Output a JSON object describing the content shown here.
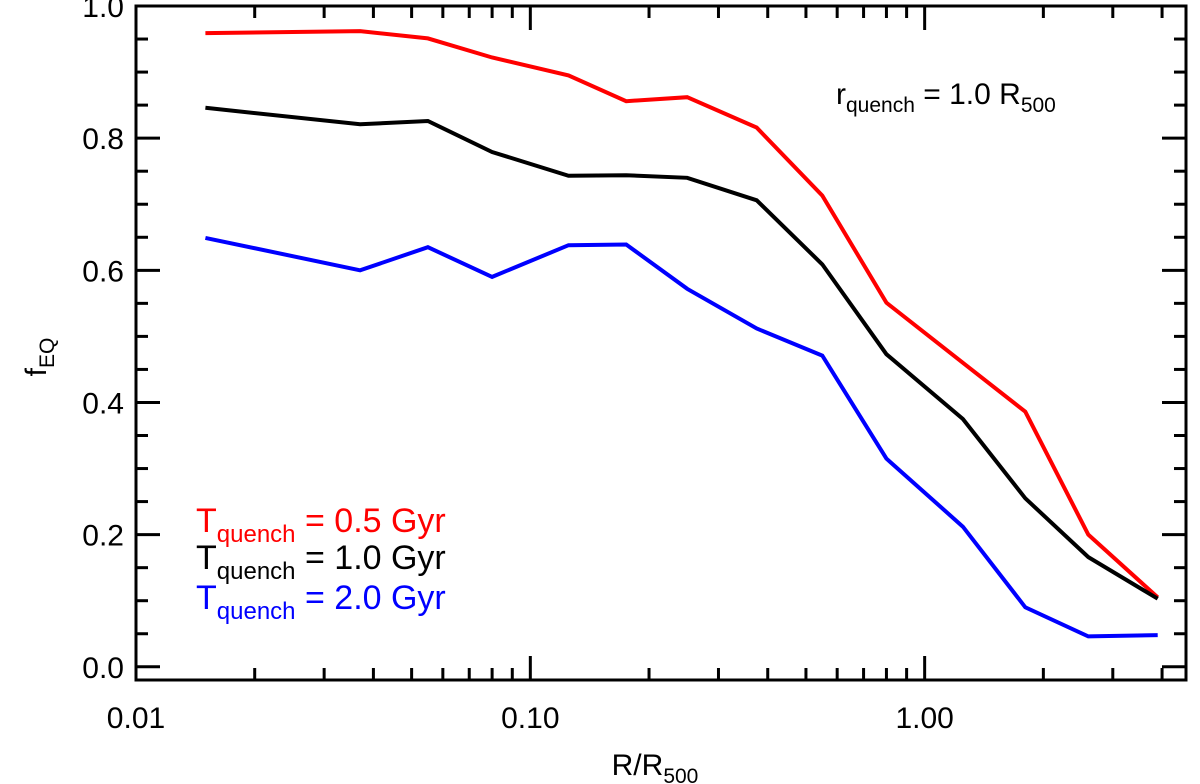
{
  "chart_data": {
    "type": "line",
    "x_scale": "log",
    "xlabel": {
      "main": "R/R",
      "sub": "500"
    },
    "ylabel": {
      "main": "f",
      "sub": "EQ"
    },
    "xlim": [
      0.01,
      4.6
    ],
    "ylim": [
      -0.02,
      1.0
    ],
    "x_ticks": [
      {
        "value": 0.01,
        "label": "0.01"
      },
      {
        "value": 0.1,
        "label": "0.10"
      },
      {
        "value": 1.0,
        "label": "1.00"
      }
    ],
    "y_ticks": [
      {
        "value": 0.0,
        "label": "0.0"
      },
      {
        "value": 0.2,
        "label": "0.2"
      },
      {
        "value": 0.4,
        "label": "0.4"
      },
      {
        "value": 0.6,
        "label": "0.6"
      },
      {
        "value": 0.8,
        "label": "0.8"
      },
      {
        "value": 1.0,
        "label": "1.0"
      }
    ],
    "annotation": {
      "main": "r",
      "sub": "quench",
      "rest": " = 1.0 R",
      "rest_sub": "500"
    },
    "x": [
      0.015,
      0.037,
      0.055,
      0.08,
      0.125,
      0.175,
      0.25,
      0.375,
      0.55,
      0.8,
      1.25,
      1.8,
      2.6,
      3.9
    ],
    "series": [
      {
        "name": "0.5",
        "color": "#ff0000",
        "label_main": "T",
        "label_sub": "quench",
        "label_rest": " = 0.5 Gyr",
        "values": [
          0.959,
          0.962,
          0.951,
          0.922,
          0.895,
          0.856,
          0.862,
          0.816,
          0.713,
          0.551,
          0.46,
          0.386,
          0.2,
          0.105
        ]
      },
      {
        "name": "1.0",
        "color": "#000000",
        "label_main": "T",
        "label_sub": "quench",
        "label_rest": " = 1.0 Gyr",
        "values": [
          0.846,
          0.821,
          0.826,
          0.779,
          0.743,
          0.744,
          0.74,
          0.706,
          0.609,
          0.473,
          0.375,
          0.255,
          0.166,
          0.103
        ]
      },
      {
        "name": "2.0",
        "color": "#0000ff",
        "label_main": "T",
        "label_sub": "quench",
        "label_rest": " = 2.0 Gyr",
        "values": [
          0.649,
          0.6,
          0.635,
          0.59,
          0.638,
          0.639,
          0.572,
          0.512,
          0.471,
          0.315,
          0.212,
          0.09,
          0.046,
          0.048
        ]
      }
    ]
  }
}
